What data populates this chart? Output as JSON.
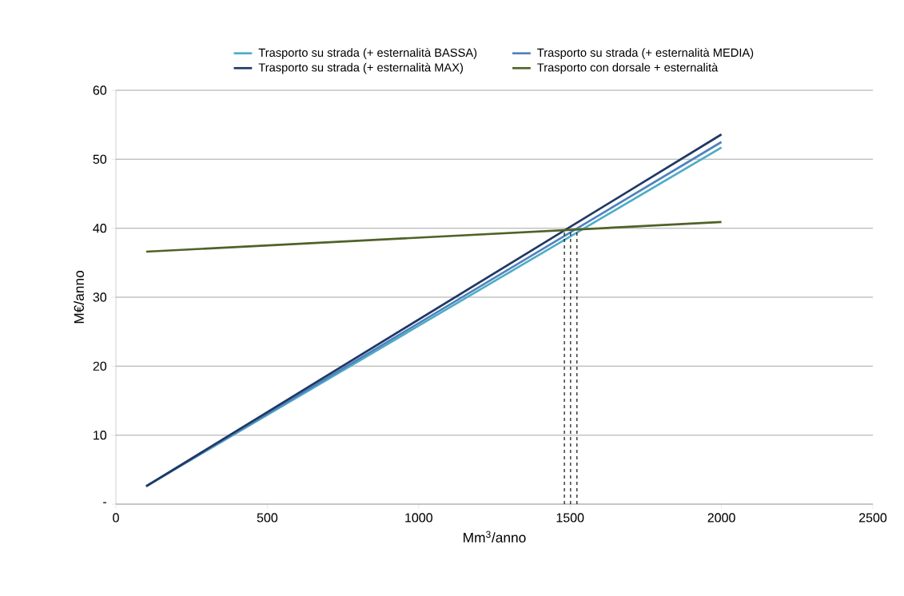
{
  "chart_data": {
    "type": "line",
    "xlabel": "Mm$^{3}$/anno",
    "ylabel": "M€/anno",
    "xlim": [
      0,
      2500
    ],
    "xticks": [
      0,
      500,
      1000,
      1500,
      2000,
      2500
    ],
    "ylim": [
      0,
      60
    ],
    "yticks": [
      {
        "value": 0,
        "label": "-"
      },
      10,
      20,
      30,
      40,
      50,
      60
    ],
    "grid": "y",
    "legend": "top",
    "marker": "none",
    "line_style": "solid",
    "series": [
      {
        "name": "Trasporto su strada (+ esternalità BASSA)",
        "color": "#4bacc6",
        "x": [
          100,
          2000
        ],
        "values": [
          2.6,
          51.7
        ]
      },
      {
        "name": "Trasporto su strada (+ esternalità MEDIA)",
        "color": "#4f81bd",
        "x": [
          100,
          2000
        ],
        "values": [
          2.6,
          52.5
        ]
      },
      {
        "name": "Trasporto su strada (+ esternalità MAX)",
        "color": "#1f3864",
        "x": [
          100,
          2000
        ],
        "values": [
          2.6,
          53.6
        ]
      },
      {
        "name": "Trasporto con dorsale + esternalità",
        "color": "#4f6228",
        "x": [
          100,
          2000
        ],
        "values": [
          36.6,
          40.9
        ]
      },
      {
        "color": "#000000",
        "line_style": "dashed",
        "x": [
          1481,
          1481
        ],
        "values": [
          0,
          39.7
        ]
      },
      {
        "color": "#000000",
        "line_style": "dashed",
        "x": [
          1502,
          1502
        ],
        "values": [
          0,
          39.7
        ]
      },
      {
        "color": "#000000",
        "line_style": "dashed",
        "x": [
          1523,
          1523
        ],
        "values": [
          0,
          39.7
        ]
      }
    ]
  }
}
